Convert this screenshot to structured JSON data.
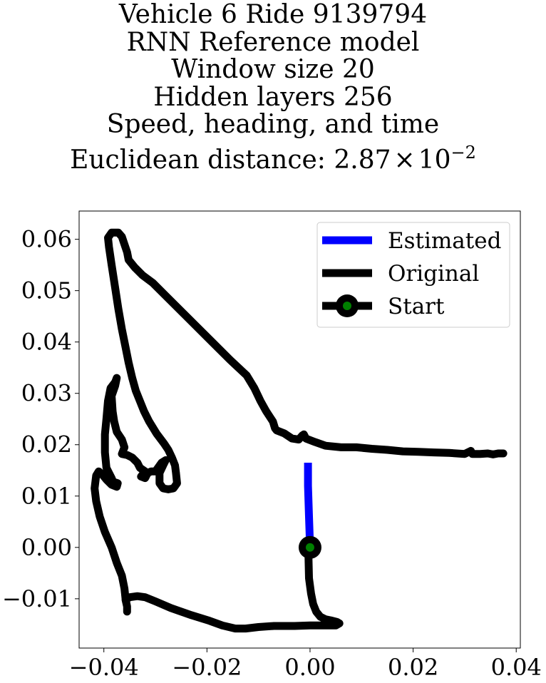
{
  "chart_data": {
    "type": "line",
    "title_lines": [
      "Vehicle 6 Ride 9139794",
      "RNN Reference model",
      "Window size 20",
      "Hidden layers 256",
      "Speed, heading, and time",
      "Euclidean distance: "
    ],
    "title_math": {
      "mantissa": "2.87",
      "times": "×",
      "base": "10",
      "exponent": "−2"
    },
    "xlim": [
      -0.0448,
      0.0408
    ],
    "ylim": [
      -0.0196,
      0.0655
    ],
    "xticks": [
      -0.04,
      -0.02,
      0.0,
      0.02,
      0.04
    ],
    "xtick_labels": [
      "−0.04",
      "−0.02",
      "0.00",
      "0.02",
      "0.04"
    ],
    "yticks": [
      -0.01,
      0.0,
      0.01,
      0.02,
      0.03,
      0.04,
      0.05,
      0.06
    ],
    "ytick_labels": [
      "−0.01",
      "0.00",
      "0.01",
      "0.02",
      "0.03",
      "0.04",
      "0.05",
      "0.06"
    ],
    "grid": false,
    "legend_position": "upper right",
    "series": [
      {
        "name": "Estimated",
        "color": "#0000ff",
        "points": [
          [
            0.0,
            0.0
          ],
          [
            -0.0002,
            0.006
          ],
          [
            -0.0004,
            0.012
          ],
          [
            -0.0004,
            0.0165
          ]
        ]
      },
      {
        "name": "Original",
        "color": "#000000",
        "points": [
          [
            0.0,
            0.0
          ],
          [
            -0.0003,
            -0.002
          ],
          [
            -0.0002,
            -0.006
          ],
          [
            0.0002,
            -0.009
          ],
          [
            0.0006,
            -0.011
          ],
          [
            0.0012,
            -0.0125
          ],
          [
            0.002,
            -0.0135
          ],
          [
            0.003,
            -0.014
          ],
          [
            0.004,
            -0.0142
          ],
          [
            0.0052,
            -0.0145
          ],
          [
            0.0057,
            -0.0148
          ],
          [
            0.005,
            -0.0152
          ],
          [
            0.003,
            -0.0152
          ],
          [
            0.0,
            -0.0152
          ],
          [
            -0.003,
            -0.0153
          ],
          [
            -0.007,
            -0.0153
          ],
          [
            -0.01,
            -0.0155
          ],
          [
            -0.0125,
            -0.0158
          ],
          [
            -0.0145,
            -0.0158
          ],
          [
            -0.017,
            -0.0152
          ],
          [
            -0.0195,
            -0.0143
          ],
          [
            -0.023,
            -0.0132
          ],
          [
            -0.027,
            -0.0118
          ],
          [
            -0.03,
            -0.0105
          ],
          [
            -0.032,
            -0.0097
          ],
          [
            -0.0335,
            -0.0095
          ],
          [
            -0.035,
            -0.0097
          ],
          [
            -0.0358,
            -0.0102
          ],
          [
            -0.0355,
            -0.0115
          ],
          [
            -0.0355,
            -0.0125
          ],
          [
            -0.0355,
            -0.0115
          ],
          [
            -0.0358,
            -0.01
          ],
          [
            -0.036,
            -0.008
          ],
          [
            -0.0365,
            -0.0055
          ],
          [
            -0.0375,
            -0.003
          ],
          [
            -0.0385,
            0.0
          ],
          [
            -0.0398,
            0.003
          ],
          [
            -0.0408,
            0.006
          ],
          [
            -0.0415,
            0.009
          ],
          [
            -0.0418,
            0.0115
          ],
          [
            -0.0415,
            0.014
          ],
          [
            -0.041,
            0.0148
          ],
          [
            -0.0403,
            0.0142
          ],
          [
            -0.0395,
            0.0132
          ],
          [
            -0.0385,
            0.0122
          ],
          [
            -0.0375,
            0.0118
          ],
          [
            -0.0373,
            0.0125
          ],
          [
            -0.0382,
            0.0128
          ],
          [
            -0.0385,
            0.0135
          ],
          [
            -0.0395,
            0.0155
          ],
          [
            -0.0398,
            0.0185
          ],
          [
            -0.0398,
            0.022
          ],
          [
            -0.0395,
            0.025
          ],
          [
            -0.0392,
            0.0285
          ],
          [
            -0.0387,
            0.031
          ],
          [
            -0.0378,
            0.0322
          ],
          [
            -0.0375,
            0.033
          ],
          [
            -0.0378,
            0.0315
          ],
          [
            -0.0385,
            0.0295
          ],
          [
            -0.0383,
            0.0265
          ],
          [
            -0.038,
            0.0245
          ],
          [
            -0.0375,
            0.0225
          ],
          [
            -0.0365,
            0.021
          ],
          [
            -0.036,
            0.0195
          ],
          [
            -0.0365,
            0.0182
          ],
          [
            -0.0355,
            0.018
          ],
          [
            -0.0345,
            0.0175
          ],
          [
            -0.0335,
            0.0165
          ],
          [
            -0.033,
            0.0155
          ],
          [
            -0.032,
            0.0148
          ],
          [
            -0.0328,
            0.0138
          ],
          [
            -0.032,
            0.0135
          ],
          [
            -0.0315,
            0.0145
          ],
          [
            -0.0308,
            0.0148
          ],
          [
            -0.03,
            0.0148
          ],
          [
            -0.0295,
            0.0155
          ],
          [
            -0.0288,
            0.0165
          ],
          [
            -0.028,
            0.017
          ],
          [
            -0.0285,
            0.016
          ],
          [
            -0.0292,
            0.0145
          ],
          [
            -0.0292,
            0.0125
          ],
          [
            -0.0285,
            0.0115
          ],
          [
            -0.0275,
            0.0113
          ],
          [
            -0.0265,
            0.0115
          ],
          [
            -0.0258,
            0.0125
          ],
          [
            -0.026,
            0.0145
          ],
          [
            -0.0262,
            0.016
          ],
          [
            -0.0268,
            0.0175
          ],
          [
            -0.0275,
            0.019
          ],
          [
            -0.0283,
            0.0202
          ],
          [
            -0.0298,
            0.0222
          ],
          [
            -0.0312,
            0.0245
          ],
          [
            -0.0322,
            0.0265
          ],
          [
            -0.033,
            0.0285
          ],
          [
            -0.0338,
            0.0305
          ],
          [
            -0.0345,
            0.033
          ],
          [
            -0.0352,
            0.036
          ],
          [
            -0.0358,
            0.039
          ],
          [
            -0.0365,
            0.0425
          ],
          [
            -0.0372,
            0.0465
          ],
          [
            -0.0378,
            0.0505
          ],
          [
            -0.0385,
            0.055
          ],
          [
            -0.039,
            0.0585
          ],
          [
            -0.0392,
            0.0603
          ],
          [
            -0.0385,
            0.0613
          ],
          [
            -0.0372,
            0.0613
          ],
          [
            -0.0365,
            0.0605
          ],
          [
            -0.036,
            0.059
          ],
          [
            -0.0355,
            0.0575
          ],
          [
            -0.0352,
            0.056
          ],
          [
            -0.034,
            0.0545
          ],
          [
            -0.0325,
            0.053
          ],
          [
            -0.0305,
            0.0515
          ],
          [
            -0.028,
            0.049
          ],
          [
            -0.0255,
            0.0465
          ],
          [
            -0.0225,
            0.0435
          ],
          [
            -0.019,
            0.04
          ],
          [
            -0.0155,
            0.0365
          ],
          [
            -0.0123,
            0.0335
          ],
          [
            -0.0108,
            0.031
          ],
          [
            -0.0096,
            0.0285
          ],
          [
            -0.0085,
            0.0265
          ],
          [
            -0.0072,
            0.0245
          ],
          [
            -0.0068,
            0.0232
          ],
          [
            -0.0065,
            0.0228
          ],
          [
            -0.005,
            0.0222
          ],
          [
            -0.0035,
            0.0212
          ],
          [
            -0.0022,
            0.021
          ],
          [
            -0.0015,
            0.0218
          ],
          [
            -0.0012,
            0.022
          ],
          [
            -0.0008,
            0.0212
          ],
          [
            0.001,
            0.0205
          ],
          [
            0.003,
            0.0198
          ],
          [
            0.006,
            0.0195
          ],
          [
            0.009,
            0.0195
          ],
          [
            0.012,
            0.0192
          ],
          [
            0.015,
            0.019
          ],
          [
            0.018,
            0.0187
          ],
          [
            0.021,
            0.0186
          ],
          [
            0.024,
            0.0185
          ],
          [
            0.027,
            0.0184
          ],
          [
            0.03,
            0.0182
          ],
          [
            0.0312,
            0.0188
          ],
          [
            0.0315,
            0.0182
          ],
          [
            0.033,
            0.0182
          ],
          [
            0.0345,
            0.0183
          ],
          [
            0.0355,
            0.0181
          ],
          [
            0.0365,
            0.0183
          ],
          [
            0.0375,
            0.0183
          ]
        ]
      },
      {
        "name": "Start",
        "color": "#008000",
        "points": [
          [
            0.0,
            0.0
          ]
        ]
      }
    ]
  }
}
